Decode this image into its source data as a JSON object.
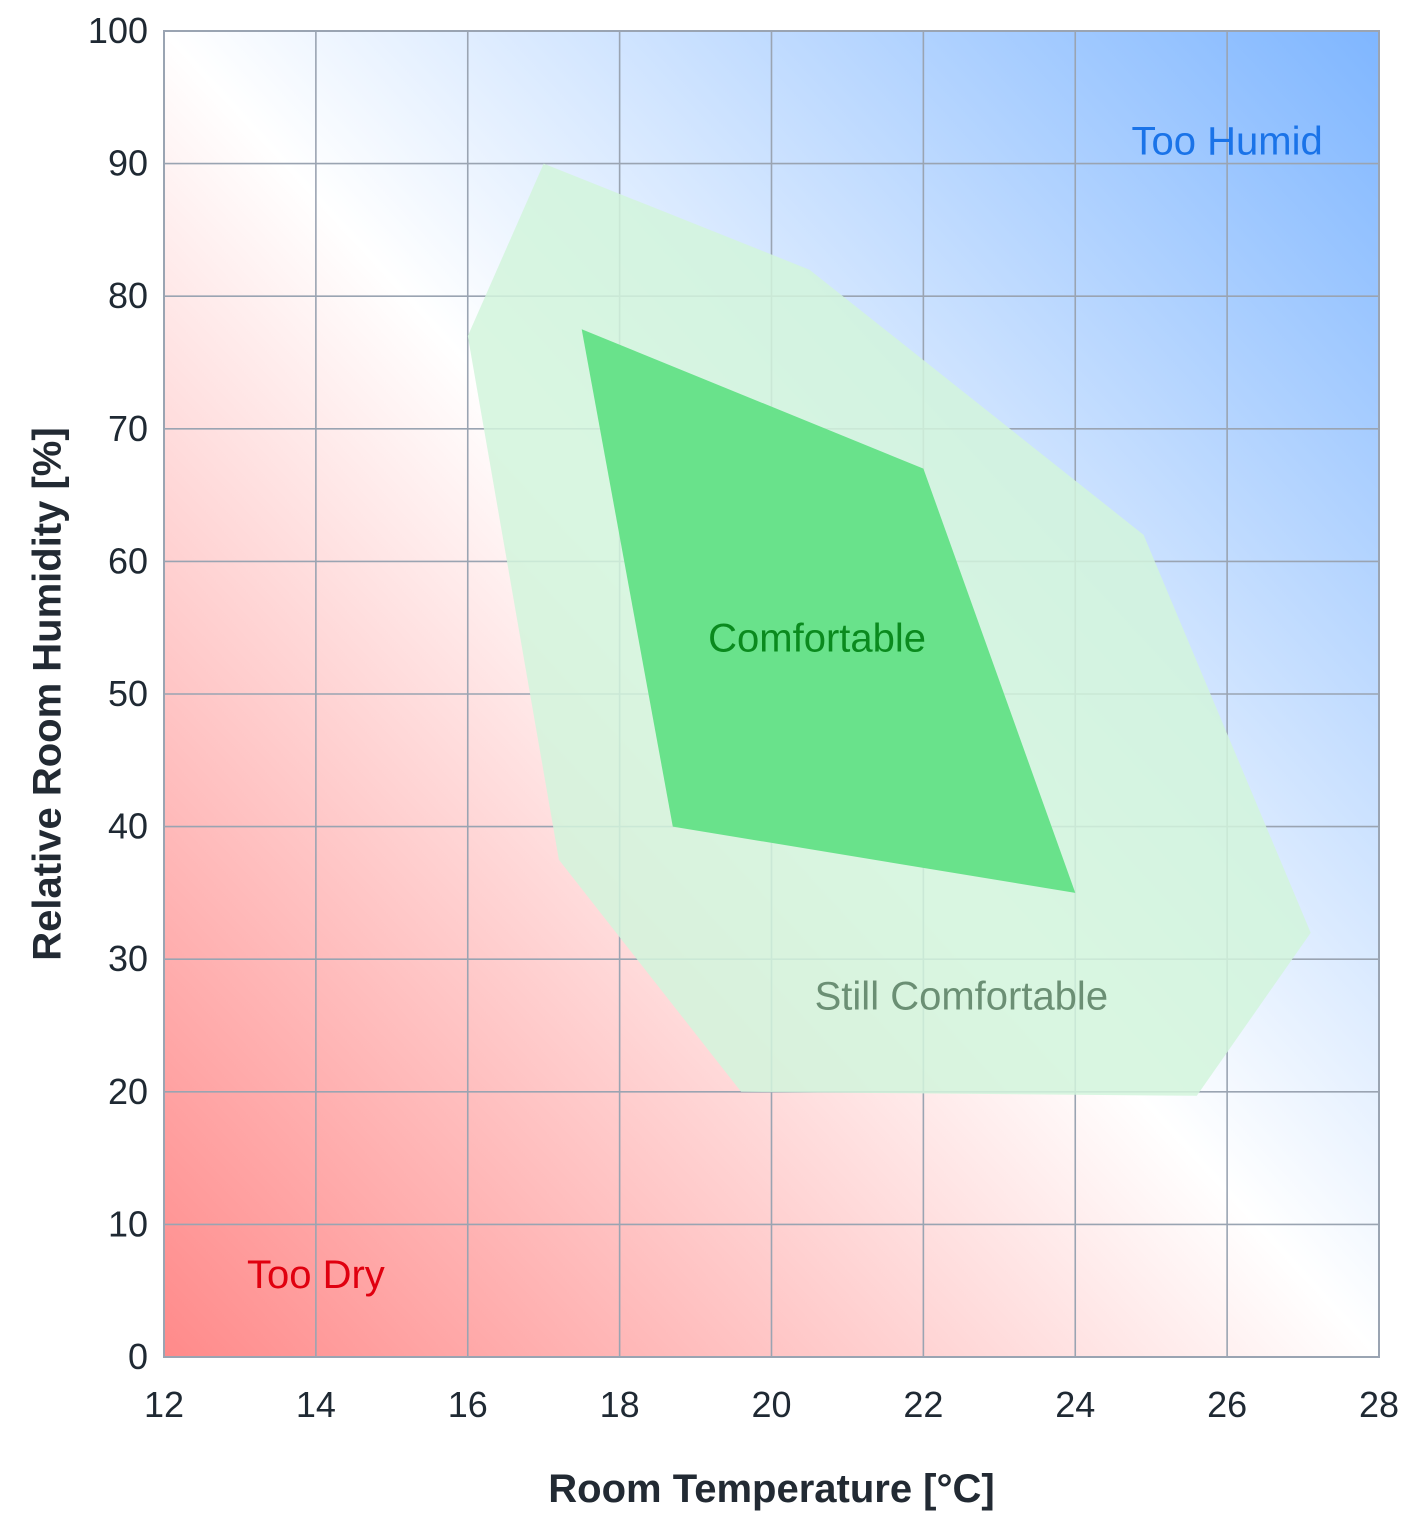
{
  "chart_data": {
    "type": "area",
    "xlabel": "Room Temperature [°C]",
    "ylabel": "Relative Room Humidity [%]",
    "xlim": [
      12,
      28
    ],
    "ylim": [
      0,
      100
    ],
    "x_ticks": [
      "12",
      "14",
      "16",
      "18",
      "20",
      "22",
      "24",
      "26",
      "28"
    ],
    "y_ticks": [
      "0",
      "10",
      "20",
      "30",
      "40",
      "50",
      "60",
      "70",
      "80",
      "90",
      "100"
    ],
    "grid": true,
    "regions": [
      {
        "label": "Still Comfortable",
        "color": "#d2f5dc",
        "label_color": "#6b8f74",
        "label_at": [
          22.5,
          27
        ],
        "points": [
          [
            17.0,
            90.0
          ],
          [
            20.5,
            82.0
          ],
          [
            24.9,
            62.0
          ],
          [
            27.1,
            32.0
          ],
          [
            25.6,
            19.7
          ],
          [
            19.6,
            20.0
          ],
          [
            17.2,
            37.5
          ],
          [
            16.0,
            77.0
          ]
        ]
      },
      {
        "label": "Comfortable",
        "color": "#69e28b",
        "label_color": "#0a8a1e",
        "label_at": [
          20.6,
          54
        ],
        "points": [
          [
            17.5,
            77.5
          ],
          [
            22.0,
            67.0
          ],
          [
            24.0,
            35.0
          ],
          [
            18.7,
            40.0
          ]
        ]
      }
    ],
    "annotations": [
      {
        "text": "Too Humid",
        "x": 26,
        "y": 91.5,
        "color": "#1a73e8"
      },
      {
        "text": "Too Dry",
        "x": 14,
        "y": 6,
        "color": "#e0000f"
      }
    ],
    "background_gradient": {
      "bottom_left": "#ff8a8a",
      "center": "#ffffff",
      "top_right": "#7fb6ff"
    }
  }
}
